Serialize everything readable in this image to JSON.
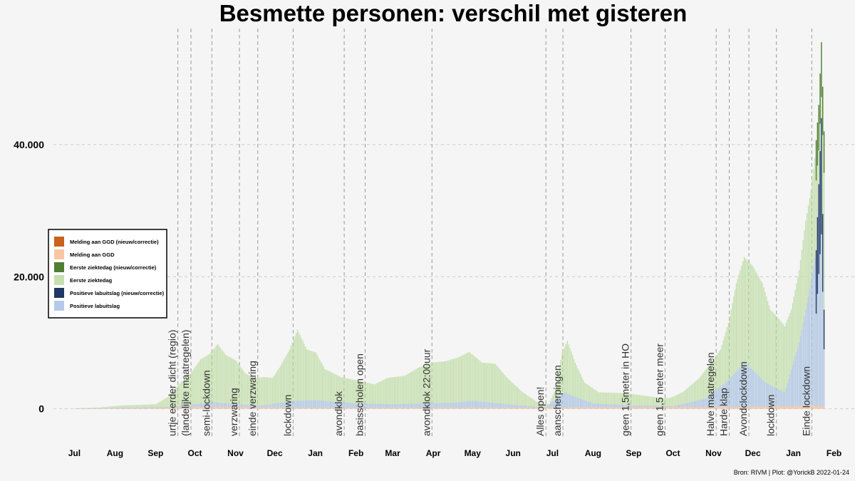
{
  "chart_data": {
    "type": "bar",
    "title": "Besmette personen: verschil met gisteren",
    "caption": "Bron: RIVM | Plot: @YorickB  2022-01-24",
    "x_range": [
      "2020-06-15",
      "2022-02-17"
    ],
    "ylim": [
      -5000,
      58000
    ],
    "grid": true,
    "y_ticks": [
      {
        "value": 0,
        "label": "0"
      },
      {
        "value": 20000,
        "label": "20.000"
      },
      {
        "value": 40000,
        "label": "40.000"
      }
    ],
    "x_ticks": [
      {
        "date": "2020-07-01",
        "label": "Jul"
      },
      {
        "date": "2020-08-01",
        "label": "Aug"
      },
      {
        "date": "2020-09-01",
        "label": "Sep"
      },
      {
        "date": "2020-10-01",
        "label": "Oct"
      },
      {
        "date": "2020-11-01",
        "label": "Nov"
      },
      {
        "date": "2020-12-01",
        "label": "Dec"
      },
      {
        "date": "2021-01-01",
        "label": "Jan"
      },
      {
        "date": "2021-02-01",
        "label": "Feb"
      },
      {
        "date": "2021-03-01",
        "label": "Mar"
      },
      {
        "date": "2021-04-01",
        "label": "Apr"
      },
      {
        "date": "2021-05-01",
        "label": "May"
      },
      {
        "date": "2021-06-01",
        "label": "Jun"
      },
      {
        "date": "2021-07-01",
        "label": "Jul"
      },
      {
        "date": "2021-08-01",
        "label": "Aug"
      },
      {
        "date": "2021-09-01",
        "label": "Sep"
      },
      {
        "date": "2021-10-01",
        "label": "Oct"
      },
      {
        "date": "2021-11-01",
        "label": "Nov"
      },
      {
        "date": "2021-12-01",
        "label": "Dec"
      },
      {
        "date": "2022-01-01",
        "label": "Jan"
      },
      {
        "date": "2022-02-01",
        "label": "Feb"
      }
    ],
    "events": [
      {
        "date": "2020-09-18",
        "label": "urtje eerder dicht (regio)"
      },
      {
        "date": "2020-09-28",
        "label": "(landelijke maatregelen)"
      },
      {
        "date": "2020-10-14",
        "label": "semi-lockdown"
      },
      {
        "date": "2020-11-04",
        "label": "verzwaring"
      },
      {
        "date": "2020-11-18",
        "label": "einde verzwaring"
      },
      {
        "date": "2020-12-15",
        "label": "lockdown"
      },
      {
        "date": "2021-01-23",
        "label": "avondklok"
      },
      {
        "date": "2021-02-08",
        "label": "basisscholen open"
      },
      {
        "date": "2021-03-31",
        "label": "avondklok 22:00uur"
      },
      {
        "date": "2021-06-26",
        "label": "Alles open!"
      },
      {
        "date": "2021-07-09",
        "label": "aanscherpingen"
      },
      {
        "date": "2021-08-30",
        "label": "geen 1,5meter in HO"
      },
      {
        "date": "2021-09-25",
        "label": "geen 1,5 meter meer"
      },
      {
        "date": "2021-11-03",
        "label": "Halve maatregelen"
      },
      {
        "date": "2021-11-13",
        "label": "Harde klap"
      },
      {
        "date": "2021-11-28",
        "label": "Avondclockdown"
      },
      {
        "date": "2021-12-19",
        "label": "lockdown"
      },
      {
        "date": "2022-01-15",
        "label": "Einde lockdown"
      }
    ],
    "legend": {
      "placement": "left",
      "entries": [
        {
          "label": "Melding aan GGD (nieuw/correctie)",
          "color": "#c8621c"
        },
        {
          "label": "Melding aan GGD",
          "color": "#f9c6a4"
        },
        {
          "label": "Eerste ziektedag (nieuw/correctie)",
          "color": "#4f7e33"
        },
        {
          "label": "Eerste ziektedag",
          "color": "#c5dfae"
        },
        {
          "label": "Positieve labuitslag (nieuw/correctie)",
          "color": "#1f3866"
        },
        {
          "label": "Positieve labuitslag",
          "color": "#b6c9ea"
        }
      ]
    },
    "series": [
      {
        "name": "Eerste ziektedag",
        "interpolation": "linear-daily",
        "points": [
          [
            "2020-07-01",
            80
          ],
          [
            "2020-07-20",
            200
          ],
          [
            "2020-08-05",
            500
          ],
          [
            "2020-08-20",
            600
          ],
          [
            "2020-09-01",
            700
          ],
          [
            "2020-09-10",
            1800
          ],
          [
            "2020-09-20",
            4000
          ],
          [
            "2020-09-28",
            5500
          ],
          [
            "2020-10-05",
            7500
          ],
          [
            "2020-10-12",
            8300
          ],
          [
            "2020-10-18",
            9800
          ],
          [
            "2020-10-24",
            8200
          ],
          [
            "2020-11-01",
            7300
          ],
          [
            "2020-11-08",
            5400
          ],
          [
            "2020-11-15",
            4600
          ],
          [
            "2020-11-22",
            4800
          ],
          [
            "2020-11-29",
            4700
          ],
          [
            "2020-12-05",
            6500
          ],
          [
            "2020-12-12",
            9000
          ],
          [
            "2020-12-18",
            12000
          ],
          [
            "2020-12-25",
            9000
          ],
          [
            "2021-01-01",
            8500
          ],
          [
            "2021-01-08",
            6000
          ],
          [
            "2021-01-20",
            4800
          ],
          [
            "2021-02-01",
            4300
          ],
          [
            "2021-02-08",
            4000
          ],
          [
            "2021-02-15",
            3700
          ],
          [
            "2021-02-25",
            4700
          ],
          [
            "2021-03-10",
            5000
          ],
          [
            "2021-03-20",
            6200
          ],
          [
            "2021-03-31",
            7000
          ],
          [
            "2021-04-10",
            7200
          ],
          [
            "2021-04-20",
            7800
          ],
          [
            "2021-04-28",
            8600
          ],
          [
            "2021-05-08",
            7000
          ],
          [
            "2021-05-18",
            6800
          ],
          [
            "2021-05-28",
            4500
          ],
          [
            "2021-06-08",
            2500
          ],
          [
            "2021-06-20",
            900
          ],
          [
            "2021-06-28",
            700
          ],
          [
            "2021-07-03",
            3000
          ],
          [
            "2021-07-08",
            8500
          ],
          [
            "2021-07-12",
            10300
          ],
          [
            "2021-07-18",
            7000
          ],
          [
            "2021-07-25",
            4000
          ],
          [
            "2021-08-05",
            2500
          ],
          [
            "2021-08-20",
            2400
          ],
          [
            "2021-09-01",
            2200
          ],
          [
            "2021-09-15",
            1800
          ],
          [
            "2021-09-28",
            1600
          ],
          [
            "2021-10-08",
            2500
          ],
          [
            "2021-10-20",
            4500
          ],
          [
            "2021-10-30",
            7000
          ],
          [
            "2021-11-06",
            9000
          ],
          [
            "2021-11-12",
            13000
          ],
          [
            "2021-11-18",
            19000
          ],
          [
            "2021-11-24",
            23000
          ],
          [
            "2021-12-01",
            21500
          ],
          [
            "2021-12-08",
            19000
          ],
          [
            "2021-12-14",
            15000
          ],
          [
            "2021-12-19",
            14000
          ],
          [
            "2021-12-25",
            12500
          ],
          [
            "2021-12-30",
            15000
          ],
          [
            "2022-01-05",
            21000
          ],
          [
            "2022-01-10",
            28500
          ],
          [
            "2022-01-14",
            33000
          ],
          [
            "2022-01-17",
            38000
          ],
          [
            "2022-01-20",
            46000
          ],
          [
            "2022-01-22",
            55500
          ],
          [
            "2022-01-24",
            42000
          ]
        ]
      },
      {
        "name": "Positieve labuitslag",
        "interpolation": "linear-daily",
        "points": [
          [
            "2020-07-01",
            50
          ],
          [
            "2020-08-15",
            200
          ],
          [
            "2020-09-15",
            300
          ],
          [
            "2020-10-01",
            700
          ],
          [
            "2020-10-15",
            1000
          ],
          [
            "2020-11-01",
            700
          ],
          [
            "2020-11-20",
            500
          ],
          [
            "2020-12-15",
            1200
          ],
          [
            "2021-01-01",
            1300
          ],
          [
            "2021-02-01",
            800
          ],
          [
            "2021-03-01",
            700
          ],
          [
            "2021-04-15",
            900
          ],
          [
            "2021-05-01",
            1200
          ],
          [
            "2021-06-01",
            600
          ],
          [
            "2021-06-25",
            200
          ],
          [
            "2021-07-10",
            2500
          ],
          [
            "2021-07-15",
            2000
          ],
          [
            "2021-08-01",
            800
          ],
          [
            "2021-09-01",
            500
          ],
          [
            "2021-10-01",
            400
          ],
          [
            "2021-10-25",
            1500
          ],
          [
            "2021-11-10",
            4000
          ],
          [
            "2021-11-25",
            7000
          ],
          [
            "2021-12-10",
            4000
          ],
          [
            "2021-12-25",
            2500
          ],
          [
            "2022-01-05",
            10000
          ],
          [
            "2022-01-12",
            17000
          ],
          [
            "2022-01-18",
            24000
          ],
          [
            "2022-01-22",
            44000
          ],
          [
            "2022-01-24",
            15000
          ]
        ]
      },
      {
        "name": "Melding aan GGD",
        "interpolation": "linear-daily",
        "points": [
          [
            "2020-07-01",
            0
          ],
          [
            "2020-09-20",
            200
          ],
          [
            "2020-10-15",
            300
          ],
          [
            "2021-01-01",
            150
          ],
          [
            "2021-07-12",
            200
          ],
          [
            "2021-11-25",
            300
          ],
          [
            "2022-01-20",
            500
          ],
          [
            "2022-01-24",
            300
          ]
        ]
      }
    ]
  }
}
